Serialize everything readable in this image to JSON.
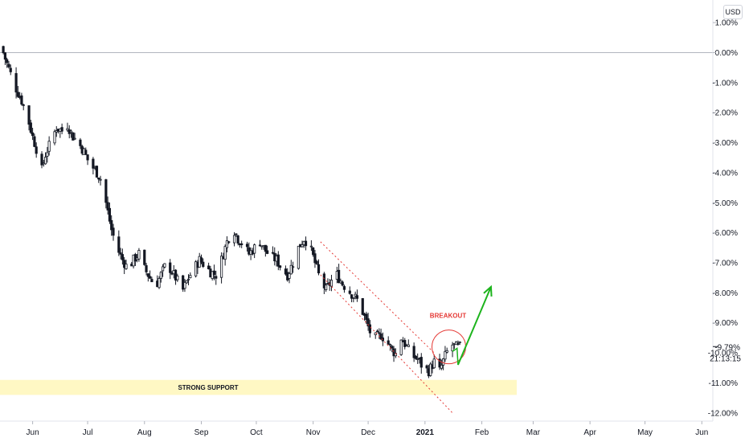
{
  "currency": "USD",
  "current": {
    "value": "-9.79%",
    "countdown": "21:13:15"
  },
  "annotations": {
    "breakout": "BREAKOUT",
    "support": "STRONG SUPPORT"
  },
  "colors": {
    "candle": "#131722",
    "channel": "#e53935",
    "arrow": "#1db41d",
    "support": "#fff8c4",
    "zero_line": "#b2b5be"
  },
  "chart_data": {
    "type": "candlestick",
    "y_unit": "%",
    "ylim": [
      -12.0,
      1.2
    ],
    "y_ticks": [
      "1.00%",
      "0.00%",
      "-1.00%",
      "-2.00%",
      "-3.00%",
      "-4.00%",
      "-5.00%",
      "-6.00%",
      "-7.00%",
      "-8.00%",
      "-9.00%",
      "-10.00%",
      "-11.00%",
      "-12.00%"
    ],
    "y_tick_values": [
      1,
      0,
      -1,
      -2,
      -3,
      -4,
      -5,
      -6,
      -7,
      -8,
      -9,
      -10,
      -11,
      -12
    ],
    "x_ticks": [
      {
        "label": "Jun",
        "day": 9,
        "bold": false
      },
      {
        "label": "Jul",
        "day": 39,
        "bold": false
      },
      {
        "label": "Aug",
        "day": 70,
        "bold": false
      },
      {
        "label": "Sep",
        "day": 101,
        "bold": false
      },
      {
        "label": "Oct",
        "day": 131,
        "bold": false
      },
      {
        "label": "Nov",
        "day": 162,
        "bold": false
      },
      {
        "label": "Dec",
        "day": 192,
        "bold": false
      },
      {
        "label": "2021",
        "day": 223,
        "bold": true
      },
      {
        "label": "Feb",
        "day": 254,
        "bold": false
      },
      {
        "label": "Mar",
        "day": 282,
        "bold": false
      },
      {
        "label": "Apr",
        "day": 313,
        "bold": false
      },
      {
        "label": "May",
        "day": 343,
        "bold": false
      },
      {
        "label": "Jun",
        "day": 374,
        "bold": false
      }
    ],
    "xlim": [
      -8.8,
      380
    ],
    "close_path": [
      [
        -8,
        0.2
      ],
      [
        -6,
        -0.2
      ],
      [
        -3,
        -0.7
      ],
      [
        0,
        -1.2
      ],
      [
        3,
        -1.6
      ],
      [
        6,
        -2.1
      ],
      [
        9,
        -2.8
      ],
      [
        12,
        -3.4
      ],
      [
        14,
        -3.9
      ],
      [
        16,
        -3.4
      ],
      [
        18,
        -3.1
      ],
      [
        20,
        -2.8
      ],
      [
        22,
        -2.5
      ],
      [
        25,
        -2.6
      ],
      [
        28,
        -2.4
      ],
      [
        31,
        -2.8
      ],
      [
        34,
        -3.0
      ],
      [
        37,
        -3.3
      ],
      [
        40,
        -3.7
      ],
      [
        43,
        -3.9
      ],
      [
        46,
        -4.2
      ],
      [
        49,
        -5.0
      ],
      [
        52,
        -5.9
      ],
      [
        55,
        -6.5
      ],
      [
        58,
        -6.9
      ],
      [
        61,
        -7.2
      ],
      [
        64,
        -6.9
      ],
      [
        67,
        -6.7
      ],
      [
        70,
        -7.2
      ],
      [
        73,
        -7.5
      ],
      [
        76,
        -7.8
      ],
      [
        79,
        -7.4
      ],
      [
        82,
        -7.0
      ],
      [
        85,
        -7.3
      ],
      [
        88,
        -7.6
      ],
      [
        91,
        -7.9
      ],
      [
        94,
        -7.5
      ],
      [
        97,
        -7.2
      ],
      [
        100,
        -6.9
      ],
      [
        103,
        -7.1
      ],
      [
        106,
        -7.3
      ],
      [
        109,
        -7.4
      ],
      [
        112,
        -6.9
      ],
      [
        115,
        -6.3
      ],
      [
        118,
        -5.8
      ],
      [
        121,
        -6.2
      ],
      [
        124,
        -6.4
      ],
      [
        127,
        -6.7
      ],
      [
        130,
        -6.5
      ],
      [
        133,
        -6.3
      ],
      [
        136,
        -6.6
      ],
      [
        139,
        -6.8
      ],
      [
        142,
        -6.9
      ],
      [
        145,
        -7.2
      ],
      [
        148,
        -7.4
      ],
      [
        151,
        -7.0
      ],
      [
        154,
        -6.5
      ],
      [
        157,
        -6.2
      ],
      [
        160,
        -6.4
      ],
      [
        163,
        -7.0
      ],
      [
        166,
        -7.6
      ],
      [
        169,
        -7.9
      ],
      [
        172,
        -7.6
      ],
      [
        175,
        -7.4
      ],
      [
        178,
        -7.7
      ],
      [
        181,
        -7.9
      ],
      [
        184,
        -8.1
      ],
      [
        187,
        -8.3
      ],
      [
        190,
        -8.8
      ],
      [
        193,
        -9.3
      ],
      [
        196,
        -9.5
      ],
      [
        199,
        -9.4
      ],
      [
        202,
        -9.6
      ],
      [
        205,
        -9.9
      ],
      [
        208,
        -10.1
      ],
      [
        210,
        -9.5
      ],
      [
        213,
        -9.8
      ],
      [
        216,
        -10.1
      ],
      [
        219,
        -10.2
      ],
      [
        222,
        -10.5
      ],
      [
        225,
        -10.6
      ],
      [
        228,
        -10.3
      ],
      [
        231,
        -10.6
      ],
      [
        234,
        -10.1
      ],
      [
        237,
        -9.7
      ],
      [
        240,
        -9.8
      ],
      [
        243,
        -9.79
      ]
    ],
    "channel": {
      "upper": [
        [
          166,
          -6.3
        ],
        [
          228,
          -10.0
        ]
      ],
      "lower": [
        [
          166,
          -7.4
        ],
        [
          238,
          -12.0
        ]
      ]
    },
    "breakout_circle": {
      "day": 236,
      "value": -9.8
    },
    "projection_arrow": [
      [
        241,
        -10.4
      ],
      [
        259,
        -7.8
      ]
    ],
    "support_zone": [
      -10.9,
      -11.4
    ]
  }
}
